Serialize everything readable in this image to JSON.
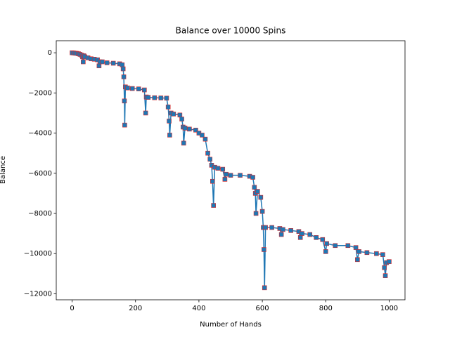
{
  "chart_data": {
    "type": "line",
    "title": "Balance over 10000 Spins",
    "x_label": "Number of Hands",
    "y_label": "Balance",
    "x": [
      0,
      5,
      10,
      15,
      20,
      25,
      30,
      33,
      35,
      37,
      40,
      50,
      60,
      70,
      80,
      85,
      88,
      95,
      110,
      130,
      150,
      158,
      161,
      163,
      165,
      166,
      168,
      175,
      190,
      210,
      228,
      232,
      234,
      240,
      260,
      280,
      298,
      303,
      306,
      308,
      312,
      320,
      340,
      346,
      350,
      352,
      356,
      370,
      390,
      400,
      410,
      420,
      428,
      435,
      440,
      443,
      446,
      450,
      460,
      475,
      482,
      486,
      500,
      530,
      560,
      570,
      575,
      578,
      580,
      585,
      595,
      600,
      603,
      605,
      607,
      610,
      630,
      655,
      660,
      665,
      690,
      715,
      720,
      725,
      750,
      770,
      790,
      800,
      803,
      830,
      870,
      895,
      900,
      905,
      930,
      960,
      980,
      985,
      988,
      992,
      1000
    ],
    "values": [
      0,
      -10,
      -20,
      -30,
      -50,
      -80,
      -120,
      -200,
      -450,
      -150,
      -200,
      -250,
      -300,
      -320,
      -350,
      -650,
      -450,
      -450,
      -500,
      -520,
      -550,
      -600,
      -800,
      -1200,
      -2400,
      -3600,
      -1700,
      -1750,
      -1780,
      -1800,
      -1850,
      -3000,
      -2200,
      -2220,
      -2240,
      -2250,
      -2260,
      -2700,
      -3400,
      -4100,
      -3000,
      -3050,
      -3100,
      -3300,
      -3700,
      -4500,
      -3750,
      -3800,
      -3850,
      -4000,
      -4100,
      -4300,
      -5000,
      -5300,
      -5600,
      -6400,
      -7600,
      -5700,
      -5750,
      -5800,
      -6300,
      -6050,
      -6100,
      -6100,
      -6150,
      -6200,
      -6700,
      -7000,
      -8000,
      -6900,
      -7200,
      -7900,
      -8700,
      -9800,
      -11700,
      -8700,
      -8700,
      -8750,
      -9050,
      -8800,
      -8850,
      -8900,
      -9200,
      -9000,
      -9050,
      -9200,
      -9300,
      -9900,
      -9500,
      -9600,
      -9600,
      -9700,
      -10300,
      -9900,
      -9950,
      -10000,
      -10050,
      -10700,
      -11100,
      -10450,
      -10400
    ],
    "color": "#1f77b4",
    "marker_edge_color": "#d62728",
    "marker": "square",
    "xlim": [
      -50,
      1050
    ],
    "ylim": [
      -12300,
      600
    ],
    "xticks": [
      0,
      200,
      400,
      600,
      800,
      1000
    ],
    "yticks": [
      {
        "value": 0,
        "label": "0"
      },
      {
        "value": -2000,
        "label": "−2000"
      },
      {
        "value": -4000,
        "label": "−4000"
      },
      {
        "value": -6000,
        "label": "−6000"
      },
      {
        "value": -8000,
        "label": "−8000"
      },
      {
        "value": -10000,
        "label": "−10000"
      },
      {
        "value": -12000,
        "label": "−12000"
      }
    ]
  }
}
